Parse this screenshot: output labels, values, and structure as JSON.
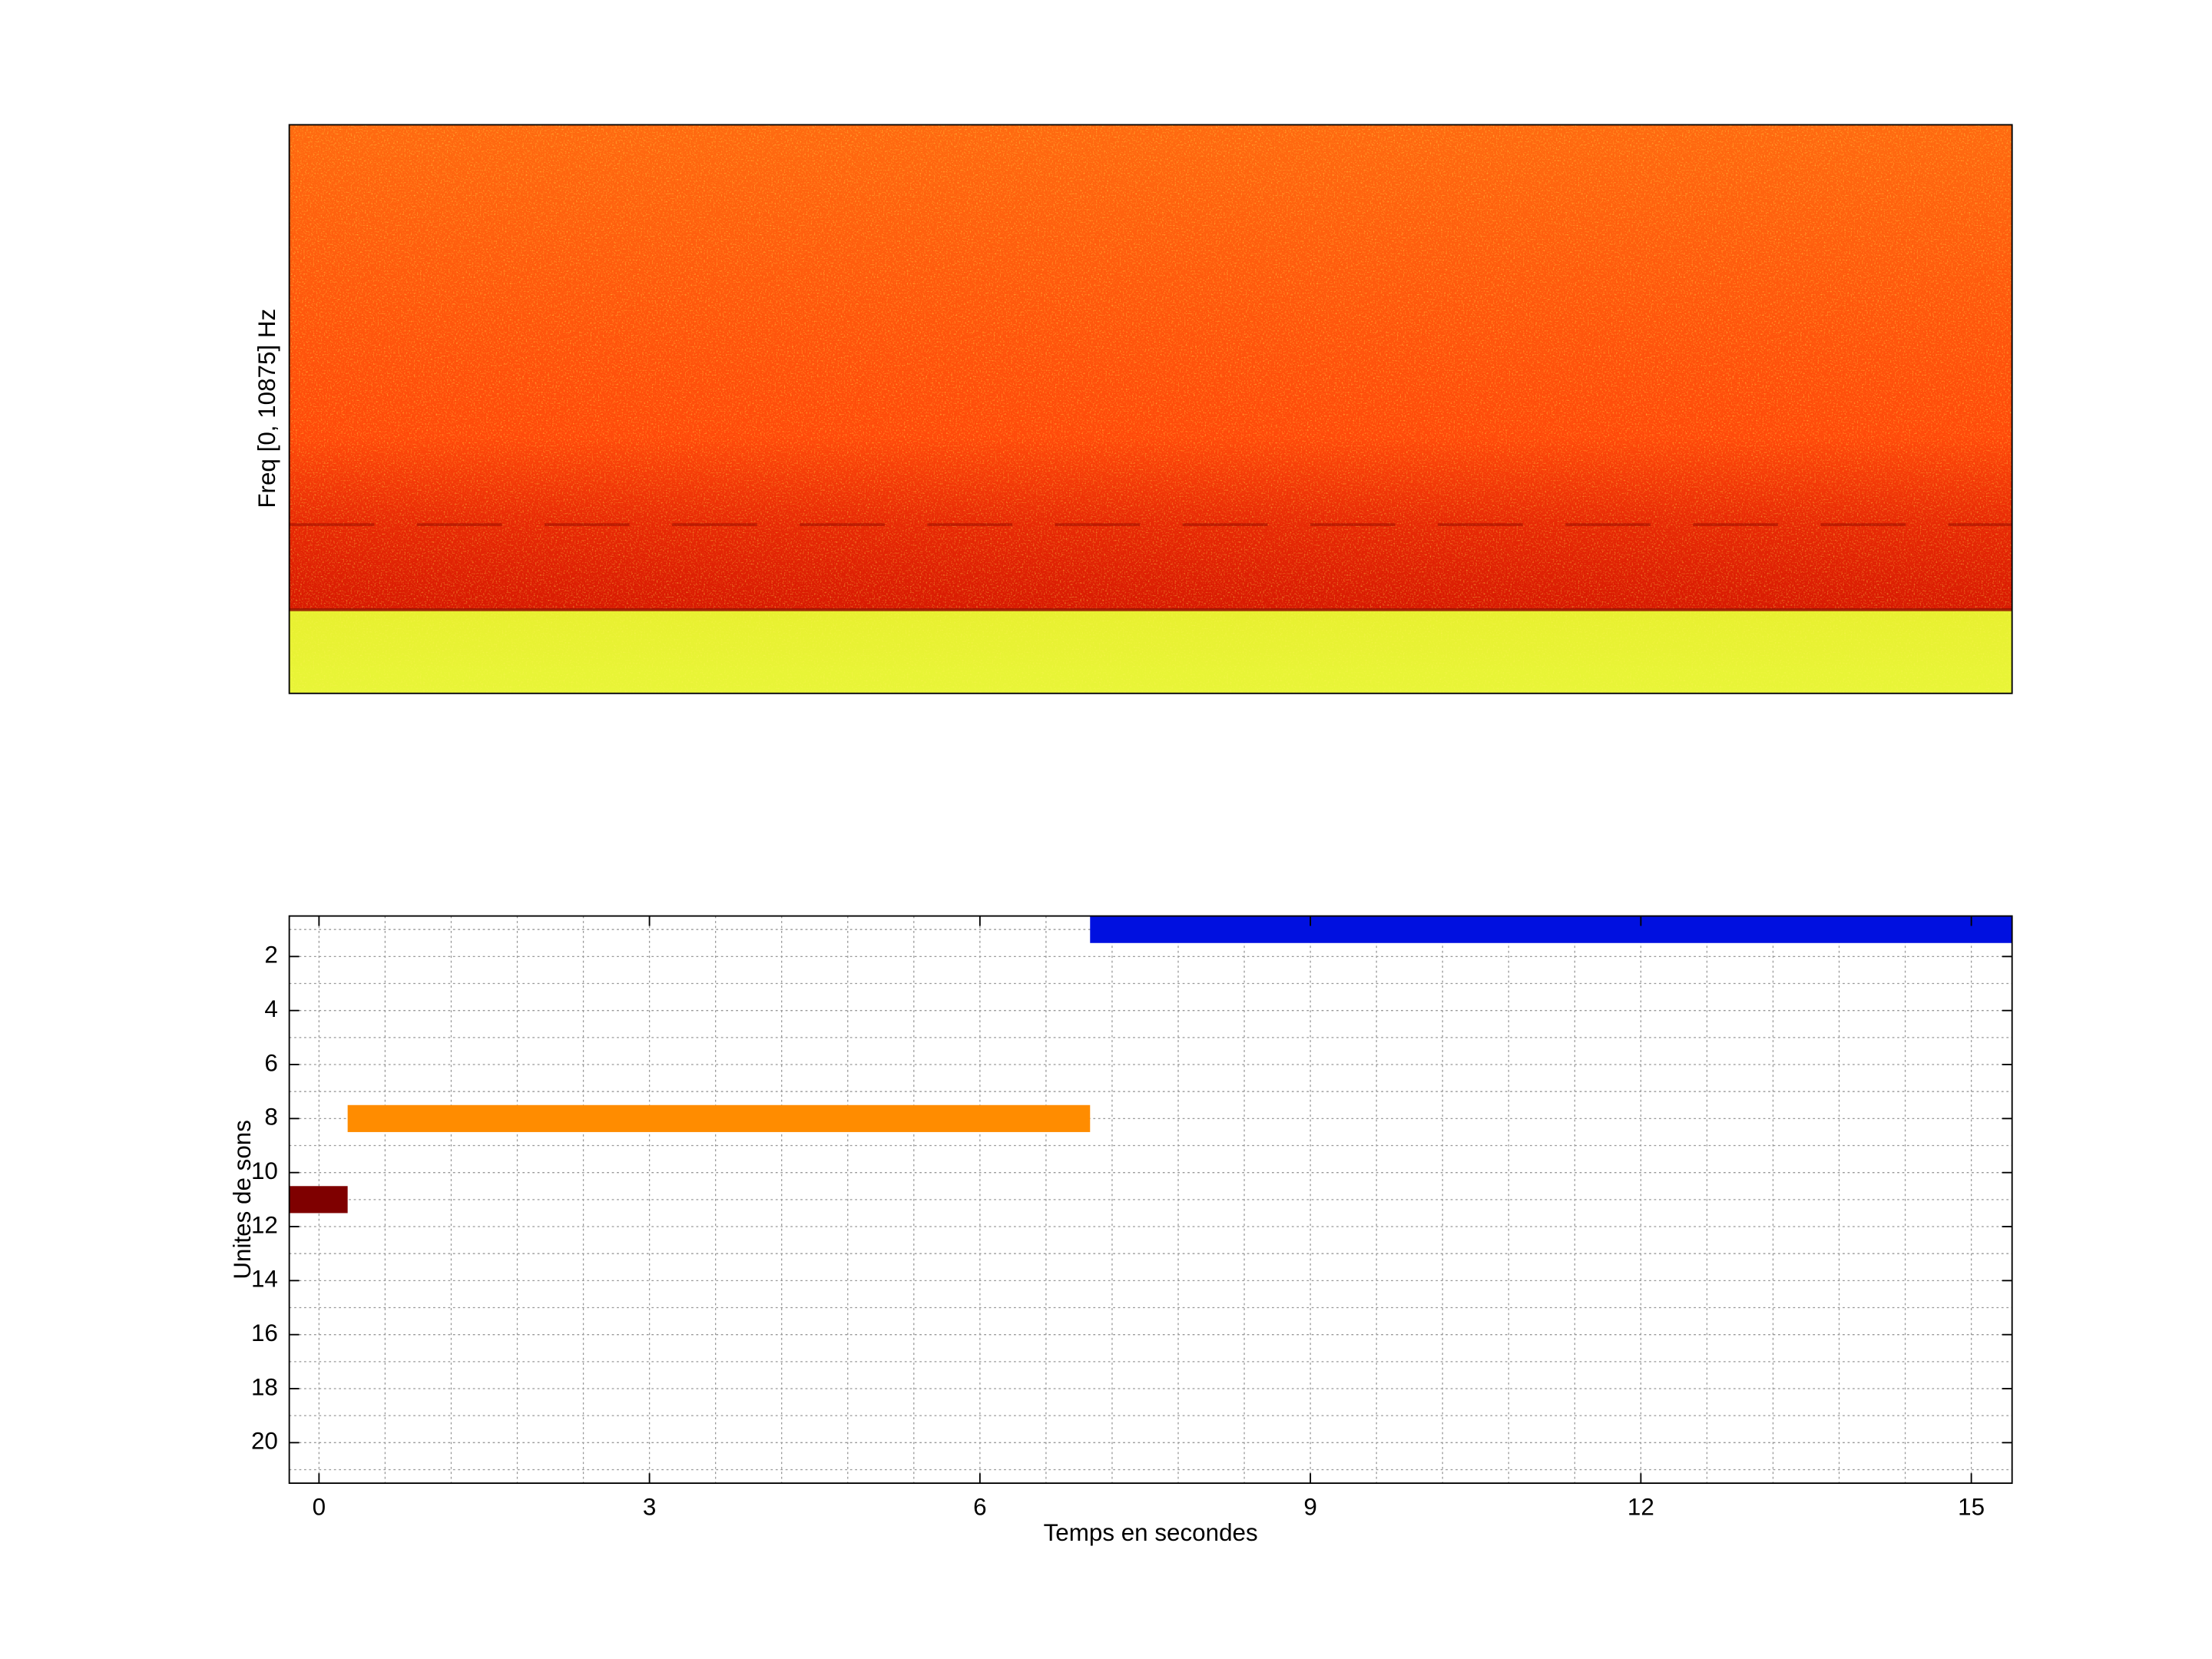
{
  "chart_data": [
    {
      "type": "spectrogram",
      "y_label": "Freq [0, 10875] Hz"
    },
    {
      "type": "interval",
      "x_label": "Temps en secondes",
      "y_label": "Unites de sons",
      "xlim": [
        -0.27,
        15.37
      ],
      "ylim": [
        21.5,
        0.5
      ],
      "xticks": [
        0,
        3,
        6,
        9,
        12,
        15
      ],
      "yticks": [
        2,
        4,
        6,
        8,
        10,
        12,
        14,
        16,
        18,
        20
      ],
      "xgrid": [
        0,
        0.6,
        1.2,
        1.8,
        2.4,
        3,
        3.6,
        4.2,
        4.8,
        5.4,
        6,
        6.6,
        7.2,
        7.8,
        8.4,
        9,
        9.6,
        10.2,
        10.8,
        11.4,
        12,
        12.6,
        13.2,
        13.8,
        14.4,
        15
      ],
      "ygrid": [
        1,
        2,
        3,
        4,
        5,
        6,
        7,
        8,
        9,
        10,
        11,
        12,
        13,
        14,
        15,
        16,
        17,
        18,
        19,
        20,
        21
      ],
      "grid": true,
      "intervals": [
        {
          "row": 11,
          "start": -0.27,
          "end": 0.26,
          "color": "#7f0000"
        },
        {
          "row": 8,
          "start": 0.26,
          "end": 7.0,
          "color": "#ff8c00"
        },
        {
          "row": 1,
          "start": 7.0,
          "end": 15.37,
          "color": "#0010e0"
        }
      ]
    }
  ]
}
